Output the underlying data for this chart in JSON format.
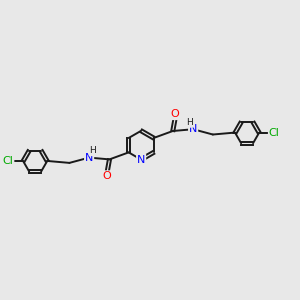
{
  "background_color": "#e8e8e8",
  "bond_color": "#1a1a1a",
  "N_color": "#0000ff",
  "O_color": "#ff0000",
  "Cl_color": "#00aa00",
  "figsize": [
    3.0,
    3.0
  ],
  "dpi": 100,
  "xlim": [
    0,
    12
  ],
  "ylim": [
    0,
    10
  ]
}
